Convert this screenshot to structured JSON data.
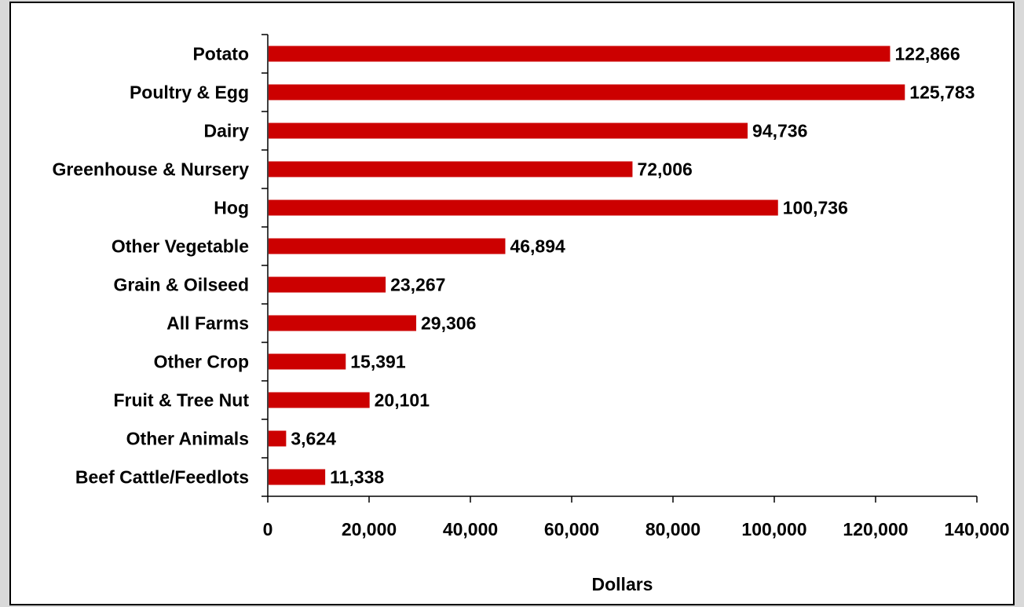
{
  "chart_data": {
    "type": "bar",
    "orientation": "horizontal",
    "categories": [
      "Potato",
      "Poultry & Egg",
      "Dairy",
      "Greenhouse & Nursery",
      "Hog",
      "Other Vegetable",
      "Grain & Oilseed",
      "All Farms",
      "Other Crop",
      "Fruit & Tree Nut",
      "Other Animals",
      "Beef Cattle/Feedlots"
    ],
    "values": [
      122866,
      125783,
      94736,
      72006,
      100736,
      46894,
      23267,
      29306,
      15391,
      20101,
      3624,
      11338
    ],
    "value_labels": [
      "122,866",
      "125,783",
      "94,736",
      "72,006",
      "100,736",
      "46,894",
      "23,267",
      "29,306",
      "15,391",
      "20,101",
      "3,624",
      "11,338"
    ],
    "xlabel": "Dollars",
    "ylabel": "",
    "xlim": [
      0,
      140000
    ],
    "x_ticks": [
      0,
      20000,
      40000,
      60000,
      80000,
      100000,
      120000,
      140000
    ],
    "x_tick_labels": [
      "0",
      "20,000",
      "40,000",
      "60,000",
      "80,000",
      "100,000",
      "120,000",
      "140,000"
    ],
    "grid": false,
    "legend": "none",
    "bar_color": "#cc0000",
    "background_color": "#ffffff",
    "page_background_color": "#d9d9d9"
  }
}
